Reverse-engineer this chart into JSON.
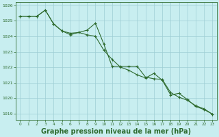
{
  "title": "Graphe pression niveau de la mer (hPa)",
  "x": [
    0,
    1,
    2,
    3,
    4,
    5,
    6,
    7,
    8,
    9,
    10,
    11,
    12,
    13,
    14,
    15,
    16,
    17,
    18,
    19,
    20,
    21,
    22,
    23
  ],
  "line1": [
    1025.3,
    1025.3,
    1025.3,
    1025.7,
    1024.8,
    1024.35,
    1024.2,
    1024.25,
    1024.4,
    1024.85,
    1023.5,
    1022.05,
    1022.05,
    1022.05,
    1022.05,
    1021.35,
    1021.25,
    1021.2,
    1020.35,
    1020.05,
    1019.85,
    1019.5,
    1019.3,
    1018.95
  ],
  "line2": [
    1025.3,
    1025.3,
    1025.3,
    1025.7,
    1024.8,
    1024.35,
    1024.1,
    1024.25,
    1024.1,
    1024.0,
    1023.1,
    1022.5,
    1022.0,
    1021.8,
    1021.5,
    1021.3,
    1021.6,
    1021.15,
    1020.2,
    1020.3,
    1019.9,
    1019.45,
    1019.25,
    1018.95
  ],
  "line_color": "#2d6a2d",
  "bg_color": "#c8eef0",
  "grid_color": "#9ecdd4",
  "ylim": [
    1018.6,
    1026.2
  ],
  "yticks": [
    1019,
    1020,
    1021,
    1022,
    1023,
    1024,
    1025,
    1026
  ],
  "title_fontsize": 7.0,
  "marker": "+"
}
